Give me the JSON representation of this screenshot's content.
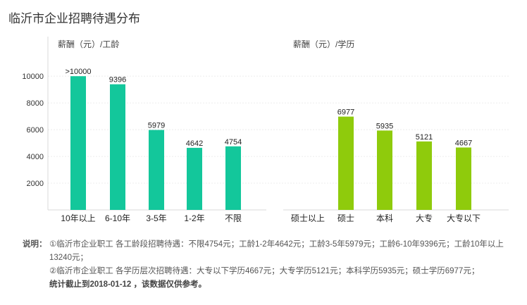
{
  "page_title": "临沂市企业招聘待遇分布",
  "chart_data": [
    {
      "type": "bar",
      "ylabel": "薪酬（元）/工龄",
      "categories": [
        "10年以上",
        "6-10年",
        "3-5年",
        "1-2年",
        "不限"
      ],
      "values": [
        10000,
        9396,
        5979,
        4642,
        4754
      ],
      "value_labels": [
        ">10000",
        "9396",
        "5979",
        "4642",
        "4754"
      ],
      "ylim": [
        0,
        11800
      ],
      "yticks": [
        2000,
        4000,
        6000,
        8000,
        10000
      ],
      "color": "#13c79b",
      "grid": true
    },
    {
      "type": "bar",
      "ylabel": "薪酬（元）/学历",
      "categories": [
        "硕士以上",
        "硕士",
        "本科",
        "大专",
        "大专以下"
      ],
      "values": [
        null,
        6977,
        5935,
        5121,
        4667
      ],
      "value_labels": [
        "",
        "6977",
        "5935",
        "5121",
        "4667"
      ],
      "ylim": [
        0,
        11800
      ],
      "color": "#8fcb0c",
      "grid": true
    }
  ],
  "notes": {
    "lead": "说明：",
    "line1": "①临沂市企业职工 各工龄段招聘待遇：不限4754元；工龄1-2年4642元；工龄3-5年5979元；工龄6-10年9396元；工龄10年以上13240元；",
    "line2": "②临沂市企业职工 各学历层次招聘待遇：大专以下学历4667元；大专学历5121元；本科学历5935元；硕士学历6977元；",
    "line3": "统计截止到2018-01-12 ，该数据仅供参考。"
  }
}
